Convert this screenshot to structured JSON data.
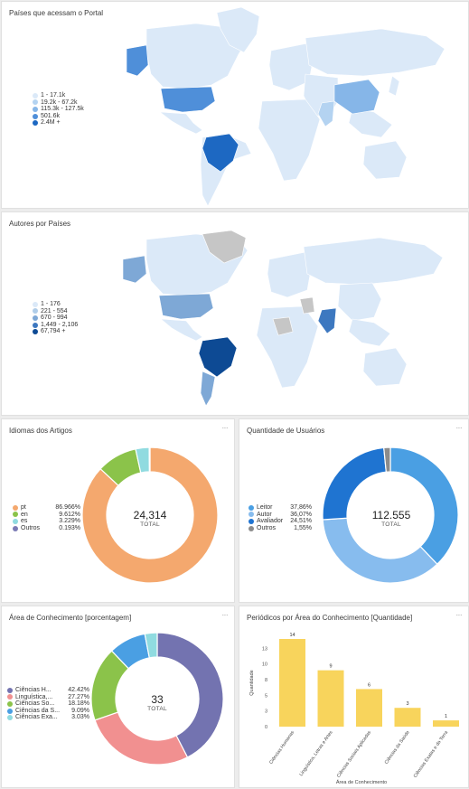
{
  "map1": {
    "title": "Países que acessam o Portal",
    "legend": [
      {
        "label": "1 - 17.1k",
        "color": "#dbe9f8"
      },
      {
        "label": "19.2k - 67.2k",
        "color": "#b4d3f1"
      },
      {
        "label": "115.3k - 127.5k",
        "color": "#86b6e8"
      },
      {
        "label": "501.6k",
        "color": "#4f8fd9"
      },
      {
        "label": "2.4M +",
        "color": "#1d68c2"
      }
    ]
  },
  "map2": {
    "title": "Autores por Países",
    "legend": [
      {
        "label": "1 - 176",
        "color": "#dbe9f8"
      },
      {
        "label": "221 - 554",
        "color": "#b0cde9"
      },
      {
        "label": "670 - 994",
        "color": "#7ea8d6"
      },
      {
        "label": "1,449 - 2,106",
        "color": "#3d78c0"
      },
      {
        "label": "67,794 +",
        "color": "#0d4a94"
      }
    ]
  },
  "idiomas": {
    "title": "Idiomas dos Artigos",
    "total_value": "24,314",
    "total_label": "TOTAL"
  },
  "usuarios": {
    "title": "Quantidade de Usuários",
    "total_value": "112.555",
    "total_label": "TOTAL"
  },
  "area": {
    "title": "Área de Conhecimento [porcentagem]",
    "total_value": "33",
    "total_label": "TOTAL"
  },
  "periodicos": {
    "title": "Periódicos por Área do Conhecimento [Quantidade]"
  },
  "menu_label": "···",
  "chart_data": [
    {
      "type": "pie",
      "title": "Idiomas dos Artigos",
      "categories": [
        "pt",
        "en",
        "es",
        "Outros"
      ],
      "labels": [
        "86.966%",
        "9.612%",
        "3.229%",
        "0.193%"
      ],
      "values": [
        86.966,
        9.612,
        3.229,
        0.193
      ],
      "colors": [
        "#f4a86e",
        "#8bc34a",
        "#90dbe0",
        "#7b7bb5"
      ],
      "legend": "left"
    },
    {
      "type": "pie",
      "title": "Quantidade de Usuários",
      "categories": [
        "Leitor",
        "Autor",
        "Avaliador",
        "Outros"
      ],
      "labels": [
        "37,86%",
        "36,07%",
        "24,51%",
        "1,55%"
      ],
      "values": [
        37.86,
        36.07,
        24.51,
        1.55
      ],
      "colors": [
        "#4a9fe3",
        "#87bcee",
        "#1f74d1",
        "#8c8c8c"
      ],
      "legend": "left"
    },
    {
      "type": "pie",
      "title": "Área de Conhecimento [porcentagem]",
      "categories": [
        "Ciências H...",
        "Linguística,...",
        "Ciências So...",
        "Ciências da S...",
        "Ciências Exa..."
      ],
      "labels": [
        "42.42%",
        "27.27%",
        "18.18%",
        "9.09%",
        "3.03%"
      ],
      "values": [
        42.42,
        27.27,
        18.18,
        9.09,
        3.03
      ],
      "colors": [
        "#7373b0",
        "#f19090",
        "#8bc34a",
        "#4a9fe3",
        "#90dbe0"
      ],
      "legend": "left"
    },
    {
      "type": "bar",
      "title": "Periódicos por Área do Conhecimento [Quantidade]",
      "categories": [
        "Ciências Humanas",
        "Linguística, Letras e Artes",
        "Ciências Sociais Aplicadas",
        "Ciências da Saúde",
        "Ciências Exatas e da Terra"
      ],
      "values": [
        14,
        9,
        6,
        3,
        1
      ],
      "xlabel": "Área de Conhecimento",
      "ylabel": "Quantidade",
      "ylim": [
        0,
        14
      ],
      "yticks": [
        "0",
        "3",
        "5",
        "8",
        "10",
        "13"
      ],
      "ytick_values": [
        0,
        2.5,
        5,
        7.5,
        10,
        12.5
      ],
      "color": "#f8d45c",
      "grid": false
    }
  ]
}
